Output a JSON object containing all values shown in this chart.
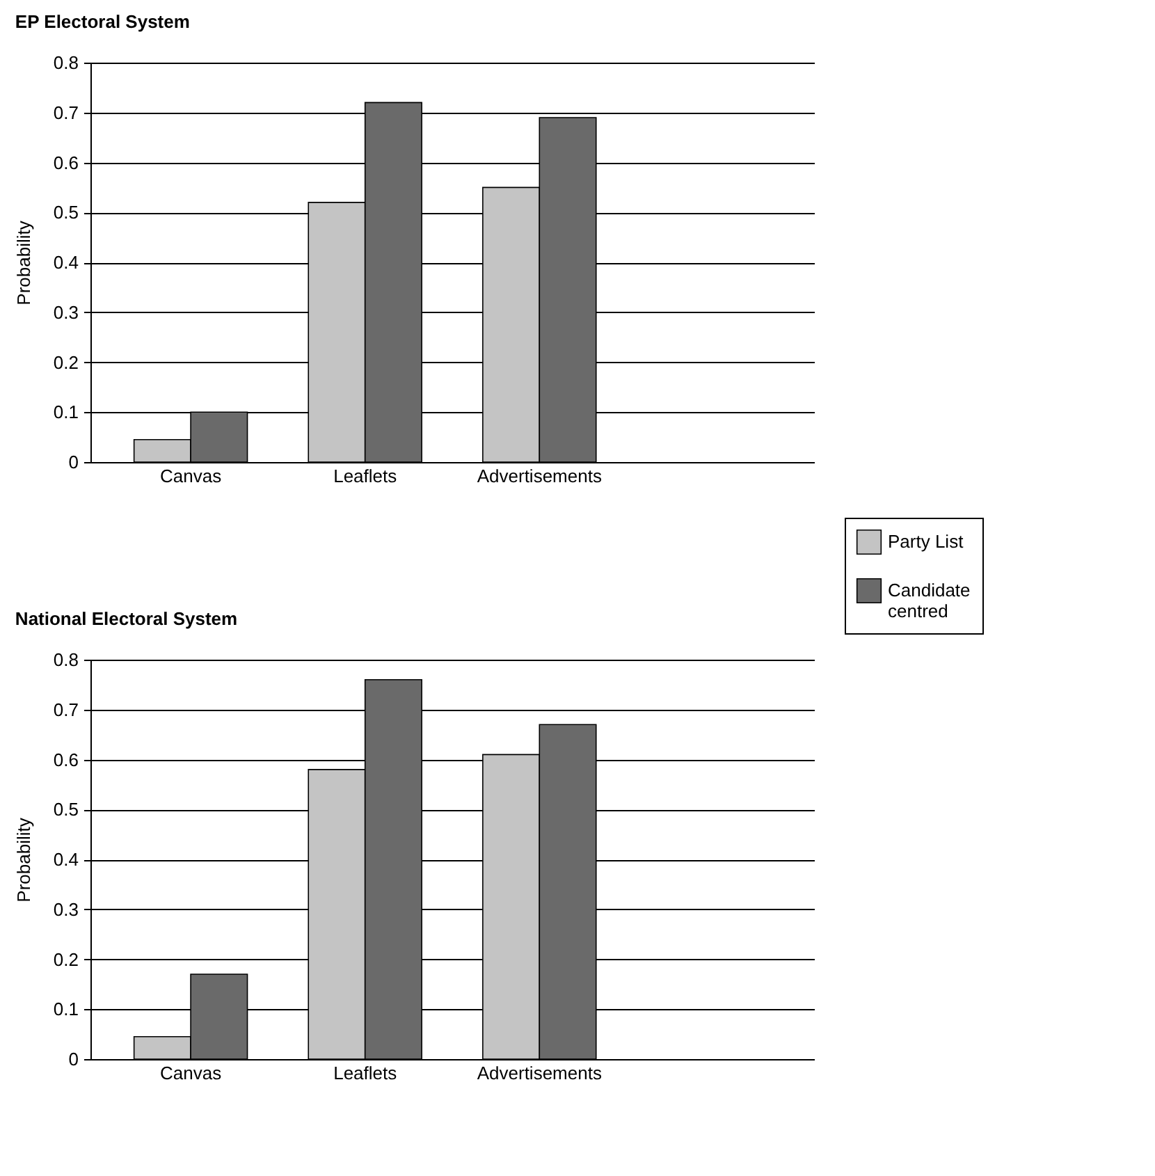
{
  "chart_data": [
    {
      "type": "bar",
      "title": "EP Electoral System",
      "ylabel": "Probability",
      "categories": [
        "Canvas",
        "Leaflets",
        "Advertisements"
      ],
      "series": [
        {
          "name": "Party List",
          "color": "#c4c4c4",
          "values": [
            0.045,
            0.52,
            0.55
          ]
        },
        {
          "name": "Candidate centred",
          "color": "#6a6a6a",
          "values": [
            0.1,
            0.72,
            0.69
          ]
        }
      ],
      "ylim": [
        0,
        0.8
      ],
      "yticks": [
        0,
        0.1,
        0.2,
        0.3,
        0.4,
        0.5,
        0.6,
        0.7,
        0.8
      ],
      "grid": "y",
      "legend": "right"
    },
    {
      "type": "bar",
      "title": "National Electoral System",
      "ylabel": "Probability",
      "categories": [
        "Canvas",
        "Leaflets",
        "Advertisements"
      ],
      "series": [
        {
          "name": "Party List",
          "color": "#c4c4c4",
          "values": [
            0.045,
            0.58,
            0.61
          ]
        },
        {
          "name": "Candidate centred",
          "color": "#6a6a6a",
          "values": [
            0.17,
            0.76,
            0.67
          ]
        }
      ],
      "ylim": [
        0,
        0.8
      ],
      "yticks": [
        0,
        0.1,
        0.2,
        0.3,
        0.4,
        0.5,
        0.6,
        0.7,
        0.8
      ],
      "grid": "y"
    }
  ]
}
